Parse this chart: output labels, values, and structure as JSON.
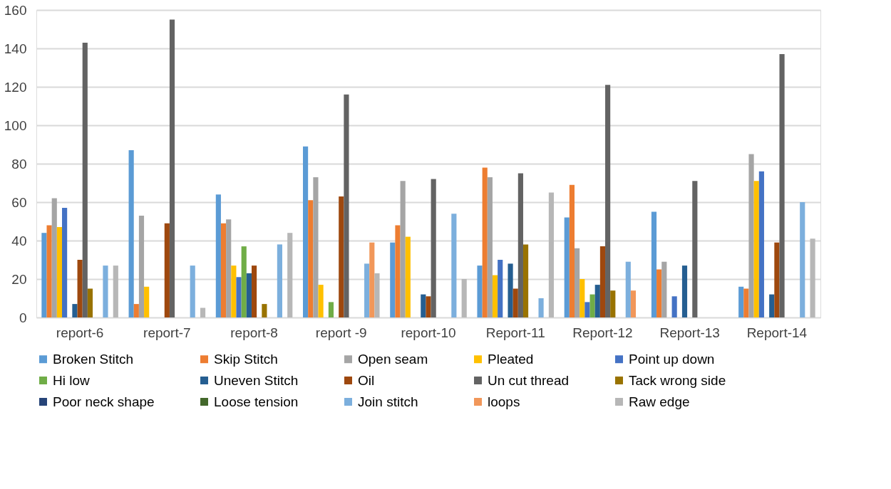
{
  "chart_data": {
    "type": "bar",
    "categories": [
      "report-6",
      "report-7",
      "report-8",
      "report -9",
      "report-10",
      "Report-11",
      "Report-12",
      "Report-13",
      "Report-14"
    ],
    "ylim": [
      0,
      160
    ],
    "yticks": [
      0,
      20,
      40,
      60,
      80,
      100,
      120,
      140,
      160
    ],
    "grid": "y",
    "legend": "bottom",
    "series": [
      {
        "name": "Broken Stitch",
        "color": "#5b9bd5",
        "values": [
          44,
          87,
          64,
          89,
          39,
          27,
          52,
          55,
          16
        ]
      },
      {
        "name": "Skip Stitch",
        "color": "#ed7d31",
        "values": [
          48,
          7,
          49,
          61,
          48,
          78,
          69,
          25,
          15
        ]
      },
      {
        "name": "Open seam",
        "color": "#a5a5a5",
        "values": [
          62,
          53,
          51,
          73,
          71,
          73,
          36,
          29,
          85
        ]
      },
      {
        "name": "Pleated",
        "color": "#ffc000",
        "values": [
          47,
          16,
          27,
          17,
          42,
          22,
          20,
          0,
          71
        ]
      },
      {
        "name": "Point up down",
        "color": "#4472c4",
        "values": [
          57,
          0,
          21,
          0,
          0,
          30,
          8,
          11,
          76
        ]
      },
      {
        "name": "Hi low",
        "color": "#70ad47",
        "values": [
          0,
          0,
          37,
          8,
          0,
          0,
          12,
          0,
          0
        ]
      },
      {
        "name": "Uneven Stitch",
        "color": "#255e91",
        "values": [
          7,
          0,
          23,
          0,
          12,
          28,
          17,
          27,
          12
        ]
      },
      {
        "name": "Oil",
        "color": "#9e480e",
        "values": [
          30,
          49,
          27,
          63,
          11,
          15,
          37,
          0,
          39
        ]
      },
      {
        "name": "Un cut thread",
        "color": "#636363",
        "values": [
          143,
          155,
          0,
          116,
          72,
          75,
          121,
          71,
          137
        ]
      },
      {
        "name": "Tack wrong side",
        "color": "#997300",
        "values": [
          15,
          0,
          7,
          0,
          0,
          38,
          14,
          0,
          0
        ]
      },
      {
        "name": "Poor neck shape",
        "color": "#264478",
        "values": [
          0,
          0,
          0,
          0,
          0,
          0,
          0,
          0,
          0
        ]
      },
      {
        "name": "Loose tension",
        "color": "#43682b",
        "values": [
          0,
          0,
          0,
          0,
          0,
          0,
          0,
          0,
          0
        ]
      },
      {
        "name": "Join stitch",
        "color": "#7cafdd",
        "values": [
          27,
          27,
          38,
          28,
          54,
          10,
          29,
          0,
          60
        ]
      },
      {
        "name": "loops",
        "color": "#f1975a",
        "values": [
          0,
          0,
          0,
          39,
          0,
          0,
          14,
          0,
          0
        ]
      },
      {
        "name": "Raw edge",
        "color": "#b7b7b7",
        "values": [
          27,
          5,
          44,
          23,
          20,
          65,
          0,
          0,
          41
        ]
      }
    ]
  }
}
